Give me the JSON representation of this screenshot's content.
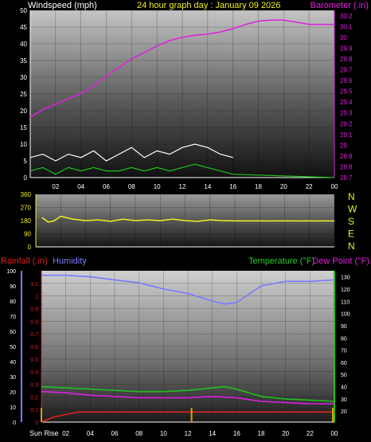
{
  "chart_data": [
    {
      "type": "line",
      "title": "24 hour graph day : January 09 2026",
      "ylabel": "Windspeed (mph)",
      "y2label": "Barometer (.in)",
      "x_ticks": [
        "02",
        "04",
        "06",
        "08",
        "10",
        "12",
        "14",
        "16",
        "18",
        "20",
        "22",
        "00"
      ],
      "ylim": [
        0,
        50
      ],
      "y_ticks": [
        "0",
        "5",
        "10",
        "15",
        "20",
        "25",
        "30",
        "35",
        "40",
        "45",
        "50"
      ],
      "y2lim": [
        28.7,
        30.25
      ],
      "y2_ticks": [
        "28.7",
        "28.8",
        "28.9",
        "29",
        "29.1",
        "29.2",
        "29.3",
        "29.4",
        "29.5",
        "29.6",
        "29.7",
        "29.8",
        "29.9",
        "30",
        "30.1",
        "30.2"
      ],
      "grid": true,
      "series": [
        {
          "name": "Barometer (.in)",
          "axis": "right",
          "color": "#e020e0",
          "x": [
            0,
            1,
            2,
            3,
            4,
            5,
            6,
            7,
            8,
            9,
            10,
            11,
            12,
            13,
            14,
            15,
            16,
            17,
            18,
            19,
            20,
            21,
            22,
            23,
            24
          ],
          "values": [
            29.26,
            29.33,
            29.38,
            29.43,
            29.48,
            29.55,
            29.64,
            29.72,
            29.8,
            29.86,
            29.92,
            29.97,
            30,
            30.02,
            30.03,
            30.05,
            30.08,
            30.12,
            30.15,
            30.16,
            30.16,
            30.14,
            30.12,
            30.12,
            30.12
          ]
        },
        {
          "name": "Wind gust",
          "axis": "left",
          "color": "#ffffff",
          "x": [
            0,
            1,
            2,
            3,
            4,
            5,
            6,
            7,
            8,
            9,
            10,
            11,
            12,
            13,
            14,
            15,
            16
          ],
          "values": [
            6,
            7,
            5,
            7,
            6,
            8,
            5,
            7,
            9,
            6,
            8,
            7,
            9,
            10,
            9,
            7,
            6
          ]
        },
        {
          "name": "Windspeed",
          "axis": "left",
          "color": "#20c020",
          "x": [
            0,
            1,
            2,
            3,
            4,
            5,
            6,
            7,
            8,
            9,
            10,
            11,
            12,
            13,
            14,
            15,
            16,
            24
          ],
          "values": [
            2,
            3,
            1,
            3,
            2,
            3,
            2,
            2,
            3,
            2,
            3,
            2,
            3,
            4,
            3,
            2,
            1,
            0
          ]
        }
      ]
    },
    {
      "type": "scatter",
      "ylabel": "",
      "y_ticks": [
        "0",
        "90",
        "180",
        "270",
        "360"
      ],
      "ylim": [
        0,
        360
      ],
      "compass_labels": [
        "N",
        "W",
        "S",
        "E",
        "N"
      ],
      "x_ticks": [],
      "series": [
        {
          "name": "Wind direction",
          "color": "#f0f020",
          "x": [
            0.5,
            1,
            1.5,
            2,
            3,
            4,
            5,
            6,
            7,
            8,
            9,
            10,
            11,
            12,
            13,
            14,
            15,
            16,
            24
          ],
          "values": [
            200,
            170,
            180,
            210,
            190,
            180,
            185,
            175,
            190,
            180,
            185,
            180,
            190,
            180,
            175,
            185,
            180,
            178,
            178
          ]
        }
      ]
    },
    {
      "type": "line",
      "y_left_label_1": "Rainfall (.in)",
      "y_left_label_2": "Humidity",
      "y_right_label_1": "Temperature (°F)",
      "y_right_label_2": "Dew Point (°F)",
      "x_first_label": "Sun Rise",
      "x_ticks": [
        "02",
        "04",
        "06",
        "08",
        "10",
        "12",
        "14",
        "16",
        "18",
        "20",
        "22",
        "00"
      ],
      "humidity_ticks": [
        "0",
        "10",
        "20",
        "30",
        "40",
        "50",
        "60",
        "70",
        "80",
        "90",
        "100"
      ],
      "rain_ticks": [
        "0",
        "0.1",
        "0.2",
        "0.3",
        "0.4",
        "0.5",
        "0.6",
        "0.7",
        "0.8",
        "0.9",
        "1",
        "1.1"
      ],
      "temp_ticks": [
        "20",
        "30",
        "40",
        "50",
        "60",
        "70",
        "80",
        "90",
        "100",
        "110",
        "120",
        "130"
      ],
      "temp_lim": [
        11,
        135
      ],
      "humidity_lim": [
        0,
        100
      ],
      "rain_lim": [
        0,
        1.2
      ],
      "grid": true,
      "series": [
        {
          "name": "Humidity",
          "axis": "humidity",
          "color": "#7a7aff",
          "x": [
            0,
            2,
            4,
            6,
            8,
            10,
            12,
            14,
            15,
            16,
            18,
            20,
            22,
            24
          ],
          "values": [
            97,
            97,
            96,
            94,
            92,
            88,
            85,
            80,
            78,
            79,
            90,
            93,
            93,
            94
          ]
        },
        {
          "name": "Temperature (°F)",
          "axis": "temp",
          "color": "#20c020",
          "x": [
            0,
            2,
            4,
            6,
            8,
            10,
            12,
            14,
            15,
            16,
            18,
            20,
            22,
            24
          ],
          "values": [
            40,
            39,
            38,
            37,
            36,
            36,
            37,
            39,
            40,
            38,
            32,
            30,
            29,
            28
          ]
        },
        {
          "name": "Dew Point (°F)",
          "axis": "temp",
          "color": "#e020e0",
          "x": [
            0,
            2,
            4,
            6,
            8,
            10,
            12,
            14,
            16,
            18,
            20,
            22,
            24
          ],
          "values": [
            36,
            35,
            33,
            32,
            31,
            31,
            31,
            32,
            31,
            28,
            27,
            26,
            26
          ]
        },
        {
          "name": "Rainfall (.in)",
          "axis": "rain",
          "color": "#e02020",
          "x": [
            0,
            1,
            2,
            3,
            24
          ],
          "values": [
            0,
            0.04,
            0.06,
            0.08,
            0.08
          ]
        }
      ],
      "markers": [
        {
          "name": "Sun Rise",
          "x": 0,
          "color": "#e0a000"
        },
        {
          "name": "noon",
          "x": 12.3,
          "color": "#e0a000"
        },
        {
          "name": "Sun Set",
          "x": 24,
          "color": "#e0a000"
        }
      ]
    }
  ]
}
